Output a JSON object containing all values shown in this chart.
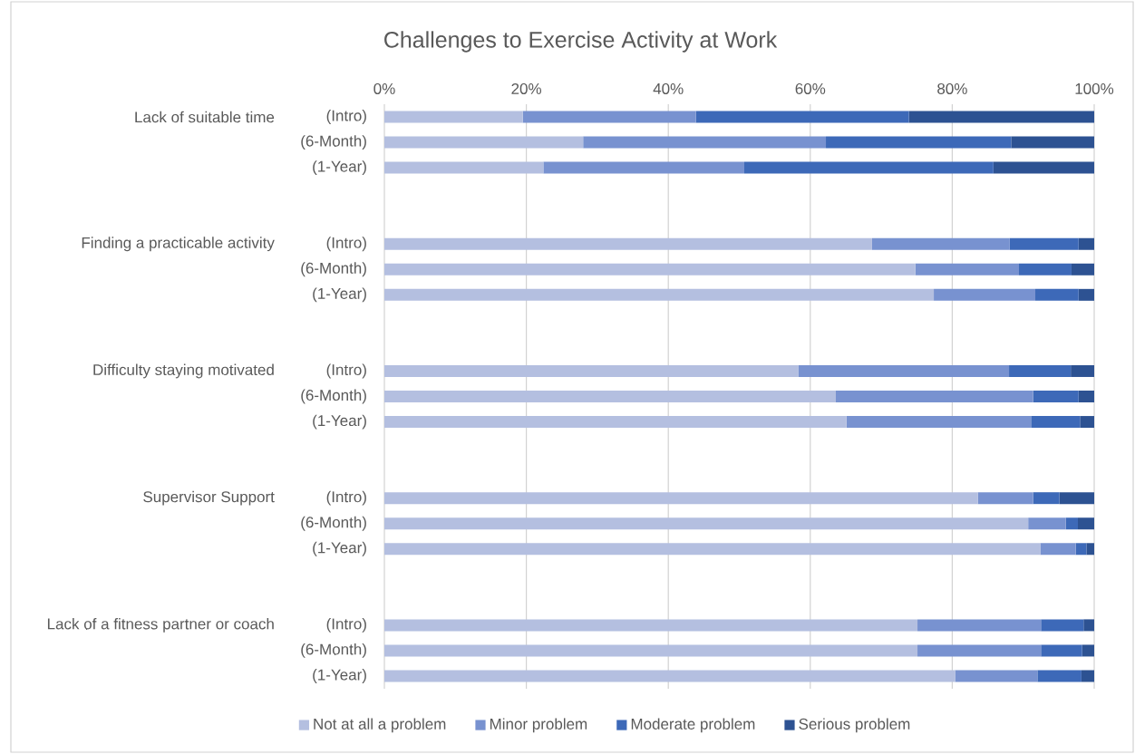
{
  "chart_data": {
    "type": "bar",
    "orientation": "horizontal",
    "stacked": true,
    "title": "Challenges to Exercise Activity at Work",
    "categories": [
      "(Intro)",
      "(6-Month)",
      "(1-Year)",
      null,
      null,
      "(Intro)",
      "(6-Month)",
      "(1-Year)",
      null,
      null,
      "(Intro)",
      "(6-Month)",
      "(1-Year)",
      null,
      null,
      "(Intro)",
      "(6-Month)",
      "(1-Year)",
      null,
      null,
      "(Intro)",
      "(6-Month)",
      "(1-Year)"
    ],
    "annotations": [
      "Lack of suitable time",
      "Finding a practicable activity",
      "Difficulty staying motivated",
      "Supervisor Support",
      "Lack of a fitness partner or coach"
    ],
    "series": [
      {
        "name": "Not at all a problem",
        "color": "#b4bfe0",
        "values": [
          19.5,
          28.0,
          22.4,
          null,
          null,
          68.7,
          74.8,
          77.4,
          null,
          null,
          58.3,
          63.6,
          65.1,
          null,
          null,
          83.6,
          90.7,
          92.4,
          null,
          null,
          75.1,
          75.1,
          80.4
        ]
      },
      {
        "name": "Minor problem",
        "color": "#7892d0",
        "values": [
          24.4,
          34.2,
          28.3,
          null,
          null,
          19.4,
          14.6,
          14.3,
          null,
          null,
          29.7,
          27.8,
          26.0,
          null,
          null,
          7.8,
          5.3,
          5.0,
          null,
          null,
          17.4,
          17.4,
          11.6
        ]
      },
      {
        "name": "Moderate problem",
        "color": "#3d69b8",
        "values": [
          30.0,
          26.1,
          35.1,
          null,
          null,
          9.7,
          7.4,
          6.1,
          null,
          null,
          8.7,
          6.4,
          6.9,
          null,
          null,
          3.7,
          1.7,
          1.5,
          null,
          null,
          6.0,
          5.8,
          6.2
        ]
      },
      {
        "name": "Serious problem",
        "color": "#2d5292",
        "values": [
          26.1,
          11.7,
          14.2,
          null,
          null,
          2.2,
          3.2,
          2.2,
          null,
          null,
          3.3,
          2.2,
          2.0,
          null,
          null,
          4.9,
          2.3,
          1.1,
          null,
          null,
          1.5,
          1.7,
          1.8
        ]
      }
    ],
    "xlim": [
      0,
      100
    ],
    "xticks": [
      {
        "value": 0,
        "label": "0%"
      },
      {
        "value": 20,
        "label": "20%"
      },
      {
        "value": 40,
        "label": "40%"
      },
      {
        "value": 60,
        "label": "60%"
      },
      {
        "value": 80,
        "label": "80%"
      },
      {
        "value": 100,
        "label": "100%"
      }
    ],
    "grid": "x",
    "legend": "bottom"
  }
}
